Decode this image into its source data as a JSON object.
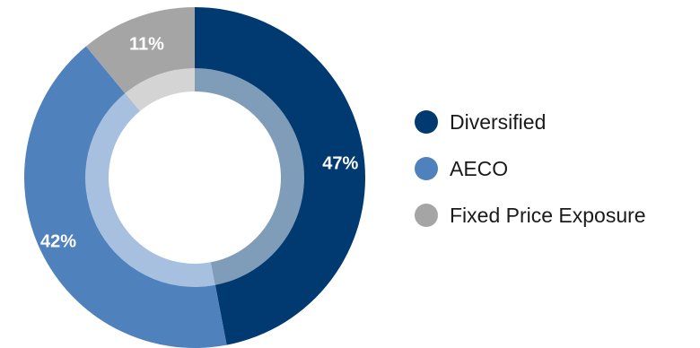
{
  "chart_data": {
    "type": "pie",
    "categories": [
      "Diversified",
      "AECO",
      "Fixed Price Exposure"
    ],
    "values": [
      47,
      42,
      11
    ],
    "data_labels": [
      "47%",
      "42%",
      "11%"
    ],
    "colors": [
      "#003a70",
      "#4f81bd",
      "#a5a5a5"
    ],
    "inner_ring_colors": [
      "#7f9db8",
      "#a7c0e0",
      "#d4d4d4"
    ],
    "legend_placement": "right",
    "donut": true
  }
}
